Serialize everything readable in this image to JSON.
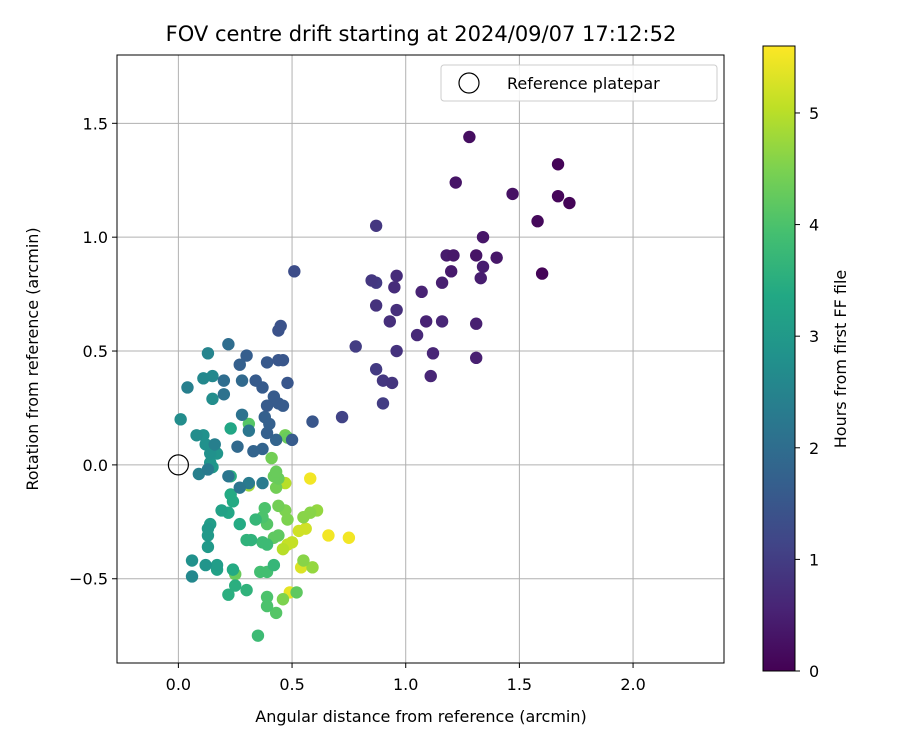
{
  "chart_data": {
    "type": "scatter",
    "title": "FOV centre drift starting at 2024/09/07 17:12:52",
    "xlabel": "Angular distance from reference (arcmin)",
    "ylabel": "Rotation from reference (arcmin)",
    "xlim": [
      -0.27,
      2.4
    ],
    "ylim": [
      -0.87,
      1.8
    ],
    "xticks": [
      0.0,
      0.5,
      1.0,
      1.5,
      2.0
    ],
    "xtick_labels": [
      "0.0",
      "0.5",
      "1.0",
      "1.5",
      "2.0"
    ],
    "yticks": [
      -0.5,
      0.0,
      0.5,
      1.0,
      1.5
    ],
    "ytick_labels": [
      "−0.5",
      "0.0",
      "0.5",
      "1.0",
      "1.5"
    ],
    "grid": true,
    "legend": {
      "placement": "top-right",
      "label": "Reference platepar"
    },
    "reference_point": {
      "x": 0.0,
      "y": 0.0
    },
    "colorbar": {
      "label": "Hours from first FF file",
      "range": [
        0,
        5.6
      ],
      "ticks": [
        0,
        1,
        2,
        3,
        4,
        5
      ],
      "tick_labels": [
        "0",
        "1",
        "2",
        "3",
        "4",
        "5"
      ],
      "colormap": "viridis"
    },
    "series": [
      {
        "color_value": "hours",
        "points": [
          {
            "x": 1.67,
            "y": 1.32,
            "h": 0.05
          },
          {
            "x": 1.6,
            "y": 0.84,
            "h": 0.05
          },
          {
            "x": 1.72,
            "y": 1.15,
            "h": 0.05
          },
          {
            "x": 1.67,
            "y": 1.18,
            "h": 0.08
          },
          {
            "x": 1.58,
            "y": 1.07,
            "h": 0.12
          },
          {
            "x": 1.28,
            "y": 1.44,
            "h": 0.2
          },
          {
            "x": 1.47,
            "y": 1.19,
            "h": 0.25
          },
          {
            "x": 1.22,
            "y": 1.24,
            "h": 0.3
          },
          {
            "x": 1.31,
            "y": 0.92,
            "h": 0.3
          },
          {
            "x": 1.34,
            "y": 1.0,
            "h": 0.35
          },
          {
            "x": 1.4,
            "y": 0.91,
            "h": 0.35
          },
          {
            "x": 1.21,
            "y": 0.92,
            "h": 0.35
          },
          {
            "x": 1.18,
            "y": 0.92,
            "h": 0.4
          },
          {
            "x": 1.2,
            "y": 0.85,
            "h": 0.4
          },
          {
            "x": 1.34,
            "y": 0.87,
            "h": 0.45
          },
          {
            "x": 1.33,
            "y": 0.82,
            "h": 0.45
          },
          {
            "x": 1.16,
            "y": 0.8,
            "h": 0.5
          },
          {
            "x": 1.31,
            "y": 0.62,
            "h": 0.5
          },
          {
            "x": 1.31,
            "y": 0.47,
            "h": 0.5
          },
          {
            "x": 1.07,
            "y": 0.76,
            "h": 0.55
          },
          {
            "x": 1.09,
            "y": 0.63,
            "h": 0.55
          },
          {
            "x": 1.16,
            "y": 0.63,
            "h": 0.6
          },
          {
            "x": 1.12,
            "y": 0.49,
            "h": 0.6
          },
          {
            "x": 1.11,
            "y": 0.39,
            "h": 0.6
          },
          {
            "x": 1.05,
            "y": 0.57,
            "h": 0.65
          },
          {
            "x": 0.96,
            "y": 0.83,
            "h": 0.7
          },
          {
            "x": 0.95,
            "y": 0.78,
            "h": 0.7
          },
          {
            "x": 0.96,
            "y": 0.68,
            "h": 0.75
          },
          {
            "x": 0.93,
            "y": 0.63,
            "h": 0.75
          },
          {
            "x": 0.96,
            "y": 0.5,
            "h": 0.8
          },
          {
            "x": 0.87,
            "y": 0.7,
            "h": 0.8
          },
          {
            "x": 0.87,
            "y": 1.05,
            "h": 0.9
          },
          {
            "x": 0.85,
            "y": 0.81,
            "h": 0.9
          },
          {
            "x": 0.87,
            "y": 0.8,
            "h": 0.95
          },
          {
            "x": 0.94,
            "y": 0.36,
            "h": 0.85
          },
          {
            "x": 0.9,
            "y": 0.37,
            "h": 0.9
          },
          {
            "x": 0.87,
            "y": 0.42,
            "h": 0.95
          },
          {
            "x": 0.9,
            "y": 0.27,
            "h": 1.0
          },
          {
            "x": 0.78,
            "y": 0.52,
            "h": 1.0
          },
          {
            "x": 0.72,
            "y": 0.21,
            "h": 1.1
          },
          {
            "x": 0.51,
            "y": 0.85,
            "h": 1.3
          },
          {
            "x": 0.45,
            "y": 0.61,
            "h": 1.4
          },
          {
            "x": 0.44,
            "y": 0.59,
            "h": 1.4
          },
          {
            "x": 0.44,
            "y": 0.46,
            "h": 1.5
          },
          {
            "x": 0.46,
            "y": 0.46,
            "h": 1.5
          },
          {
            "x": 0.48,
            "y": 0.36,
            "h": 1.5
          },
          {
            "x": 0.39,
            "y": 0.45,
            "h": 1.55
          },
          {
            "x": 0.37,
            "y": 0.34,
            "h": 1.6
          },
          {
            "x": 0.34,
            "y": 0.37,
            "h": 1.6
          },
          {
            "x": 0.3,
            "y": 0.48,
            "h": 1.65
          },
          {
            "x": 0.27,
            "y": 0.44,
            "h": 1.7
          },
          {
            "x": 0.39,
            "y": 0.26,
            "h": 1.6
          },
          {
            "x": 0.42,
            "y": 0.3,
            "h": 1.6
          },
          {
            "x": 0.44,
            "y": 0.27,
            "h": 1.6
          },
          {
            "x": 0.46,
            "y": 0.26,
            "h": 1.6
          },
          {
            "x": 0.59,
            "y": 0.19,
            "h": 1.5
          },
          {
            "x": 0.5,
            "y": 0.11,
            "h": 1.6
          },
          {
            "x": 0.38,
            "y": 0.21,
            "h": 1.7
          },
          {
            "x": 0.4,
            "y": 0.18,
            "h": 1.7
          },
          {
            "x": 0.39,
            "y": 0.14,
            "h": 1.7
          },
          {
            "x": 0.37,
            "y": 0.07,
            "h": 1.8
          },
          {
            "x": 0.43,
            "y": 0.11,
            "h": 1.8
          },
          {
            "x": 0.33,
            "y": 0.06,
            "h": 1.8
          },
          {
            "x": 0.26,
            "y": 0.08,
            "h": 1.9
          },
          {
            "x": 0.28,
            "y": 0.37,
            "h": 1.9
          },
          {
            "x": 0.22,
            "y": 0.53,
            "h": 2.0
          },
          {
            "x": 0.2,
            "y": 0.37,
            "h": 2.0
          },
          {
            "x": 0.2,
            "y": 0.31,
            "h": 2.1
          },
          {
            "x": 0.28,
            "y": 0.22,
            "h": 2.1
          },
          {
            "x": 0.31,
            "y": 0.15,
            "h": 2.2
          },
          {
            "x": 0.22,
            "y": -0.05,
            "h": 2.2
          },
          {
            "x": 0.27,
            "y": -0.1,
            "h": 2.2
          },
          {
            "x": 0.31,
            "y": -0.08,
            "h": 2.3
          },
          {
            "x": 0.37,
            "y": -0.08,
            "h": 2.3
          },
          {
            "x": 0.13,
            "y": -0.02,
            "h": 2.3
          },
          {
            "x": 0.09,
            "y": -0.04,
            "h": 2.4
          },
          {
            "x": 0.16,
            "y": 0.09,
            "h": 2.4
          },
          {
            "x": 0.04,
            "y": 0.34,
            "h": 2.4
          },
          {
            "x": 0.13,
            "y": 0.49,
            "h": 2.5
          },
          {
            "x": 0.11,
            "y": 0.38,
            "h": 2.6
          },
          {
            "x": 0.15,
            "y": 0.39,
            "h": 2.6
          },
          {
            "x": 0.15,
            "y": 0.29,
            "h": 2.7
          },
          {
            "x": 0.01,
            "y": 0.2,
            "h": 2.7
          },
          {
            "x": 0.08,
            "y": 0.13,
            "h": 2.7
          },
          {
            "x": 0.11,
            "y": 0.13,
            "h": 2.8
          },
          {
            "x": 0.12,
            "y": 0.09,
            "h": 2.8
          },
          {
            "x": 0.14,
            "y": 0.05,
            "h": 2.8
          },
          {
            "x": 0.17,
            "y": 0.05,
            "h": 2.9
          },
          {
            "x": 0.14,
            "y": 0.01,
            "h": 2.9
          },
          {
            "x": 0.15,
            "y": -0.01,
            "h": 3.0
          },
          {
            "x": 0.06,
            "y": -0.49,
            "h": 2.6
          },
          {
            "x": 0.06,
            "y": -0.42,
            "h": 2.8
          },
          {
            "x": 0.12,
            "y": -0.44,
            "h": 2.9
          },
          {
            "x": 0.13,
            "y": -0.36,
            "h": 3.0
          },
          {
            "x": 0.13,
            "y": -0.31,
            "h": 3.0
          },
          {
            "x": 0.13,
            "y": -0.28,
            "h": 3.0
          },
          {
            "x": 0.14,
            "y": -0.26,
            "h": 3.1
          },
          {
            "x": 0.17,
            "y": -0.44,
            "h": 3.1
          },
          {
            "x": 0.17,
            "y": -0.46,
            "h": 3.2
          },
          {
            "x": 0.19,
            "y": -0.2,
            "h": 3.2
          },
          {
            "x": 0.22,
            "y": -0.21,
            "h": 3.3
          },
          {
            "x": 0.24,
            "y": -0.16,
            "h": 3.4
          },
          {
            "x": 0.23,
            "y": -0.13,
            "h": 3.4
          },
          {
            "x": 0.27,
            "y": -0.26,
            "h": 3.4
          },
          {
            "x": 0.24,
            "y": -0.46,
            "h": 3.4
          },
          {
            "x": 0.22,
            "y": -0.57,
            "h": 3.5
          },
          {
            "x": 0.25,
            "y": -0.53,
            "h": 3.5
          },
          {
            "x": 0.3,
            "y": -0.33,
            "h": 3.6
          },
          {
            "x": 0.32,
            "y": -0.33,
            "h": 3.6
          },
          {
            "x": 0.3,
            "y": -0.55,
            "h": 3.6
          },
          {
            "x": 0.23,
            "y": 0.16,
            "h": 3.3
          },
          {
            "x": 0.23,
            "y": -0.05,
            "h": 3.5
          },
          {
            "x": 0.34,
            "y": -0.24,
            "h": 3.7
          },
          {
            "x": 0.37,
            "y": -0.34,
            "h": 3.8
          },
          {
            "x": 0.39,
            "y": -0.35,
            "h": 3.8
          },
          {
            "x": 0.36,
            "y": -0.47,
            "h": 3.9
          },
          {
            "x": 0.39,
            "y": -0.47,
            "h": 3.9
          },
          {
            "x": 0.35,
            "y": -0.75,
            "h": 3.8
          },
          {
            "x": 0.39,
            "y": -0.62,
            "h": 4.0
          },
          {
            "x": 0.39,
            "y": -0.58,
            "h": 4.0
          },
          {
            "x": 0.43,
            "y": -0.65,
            "h": 4.1
          },
          {
            "x": 0.31,
            "y": 0.18,
            "h": 4.1
          },
          {
            "x": 0.37,
            "y": -0.23,
            "h": 4.0
          },
          {
            "x": 0.38,
            "y": -0.19,
            "h": 4.0
          },
          {
            "x": 0.39,
            "y": -0.26,
            "h": 4.1
          },
          {
            "x": 0.42,
            "y": -0.32,
            "h": 4.2
          },
          {
            "x": 0.44,
            "y": -0.31,
            "h": 4.2
          },
          {
            "x": 0.44,
            "y": -0.06,
            "h": 4.3
          },
          {
            "x": 0.42,
            "y": -0.05,
            "h": 4.3
          },
          {
            "x": 0.43,
            "y": -0.03,
            "h": 4.3
          },
          {
            "x": 0.41,
            "y": 0.03,
            "h": 4.4
          },
          {
            "x": 0.48,
            "y": 0.12,
            "h": 4.3
          },
          {
            "x": 0.47,
            "y": 0.13,
            "h": 4.4
          },
          {
            "x": 0.43,
            "y": -0.1,
            "h": 4.4
          },
          {
            "x": 0.44,
            "y": -0.18,
            "h": 4.4
          },
          {
            "x": 0.47,
            "y": -0.2,
            "h": 4.5
          },
          {
            "x": 0.48,
            "y": -0.24,
            "h": 4.5
          },
          {
            "x": 0.52,
            "y": -0.56,
            "h": 4.2
          },
          {
            "x": 0.46,
            "y": -0.59,
            "h": 4.5
          },
          {
            "x": 0.55,
            "y": -0.23,
            "h": 4.6
          },
          {
            "x": 0.58,
            "y": -0.21,
            "h": 4.6
          },
          {
            "x": 0.61,
            "y": -0.2,
            "h": 4.7
          },
          {
            "x": 0.55,
            "y": -0.42,
            "h": 4.6
          },
          {
            "x": 0.59,
            "y": -0.45,
            "h": 4.7
          },
          {
            "x": 0.31,
            "y": -0.09,
            "h": 4.8
          },
          {
            "x": 0.47,
            "y": -0.08,
            "h": 5.0
          },
          {
            "x": 0.46,
            "y": -0.37,
            "h": 5.0
          },
          {
            "x": 0.48,
            "y": -0.35,
            "h": 5.1
          },
          {
            "x": 0.5,
            "y": -0.34,
            "h": 5.1
          },
          {
            "x": 0.53,
            "y": -0.29,
            "h": 5.2
          },
          {
            "x": 0.56,
            "y": -0.28,
            "h": 5.2
          },
          {
            "x": 0.54,
            "y": -0.45,
            "h": 5.3
          },
          {
            "x": 0.49,
            "y": -0.56,
            "h": 5.4
          },
          {
            "x": 0.58,
            "y": -0.06,
            "h": 5.5
          },
          {
            "x": 0.66,
            "y": -0.31,
            "h": 5.5
          },
          {
            "x": 0.75,
            "y": -0.32,
            "h": 5.5
          },
          {
            "x": 0.25,
            "y": -0.48,
            "h": 4.3
          },
          {
            "x": 0.42,
            "y": -0.44,
            "h": 3.7
          }
        ]
      }
    ]
  }
}
